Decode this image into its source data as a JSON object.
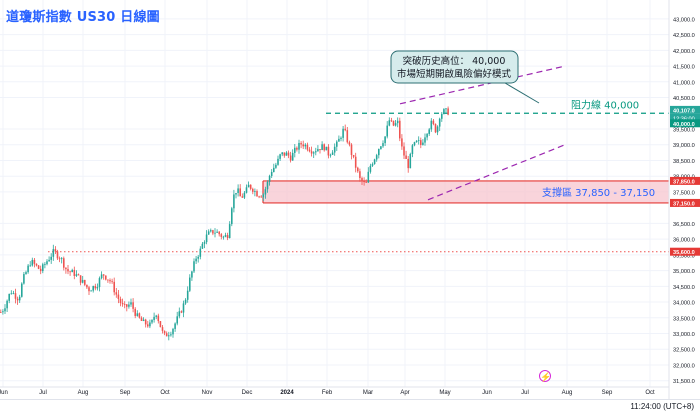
{
  "title": "道瓊斯指數 US30 日線圖",
  "colors": {
    "up": "#26a69a",
    "down": "#ef5350",
    "resistance": "#089981",
    "support_fill": "#f7c6cf",
    "support_line": "#e53935",
    "channel": "#9c27b0",
    "grid": "#f0f3fa",
    "axis_text": "#131722",
    "label_blue": "#2962ff"
  },
  "y_axis_ticks": [
    "43,000.0",
    "42,500.0",
    "42,000.0",
    "41,500.0",
    "41,000.0",
    "40,500.0",
    "39,500.0",
    "39,000.0",
    "38,500.0",
    "38,000.0",
    "37,500.0",
    "36,500.0",
    "36,000.0",
    "35,500.0",
    "35,000.0",
    "34,500.0",
    "34,000.0",
    "33,500.0",
    "33,000.0",
    "32,500.0",
    "32,000.0",
    "31,500.0"
  ],
  "price_tags": {
    "top": "40,107.0",
    "countdown": "12:36:00",
    "resistance": "40,000.0",
    "support_upper": "37,850.0",
    "support_lower": "37,150.0",
    "old_high": "35,600.0"
  },
  "x_axis_labels": [
    "Jun",
    "Jul",
    "Aug",
    "Sep",
    "Oct",
    "Nov",
    "Dec",
    "2024",
    "Feb",
    "Mar",
    "Apr",
    "May",
    "Jun",
    "Jul",
    "Aug",
    "Sep",
    "Oct"
  ],
  "annotations": {
    "callout_line1": "突破历史高位： 40,000",
    "callout_line2": "市場短期開啟風險偏好模式",
    "resistance_label": "阻力線 40,000",
    "support_label": "支撐區 37,850 - 37,150"
  },
  "status_time": "11:24:00 (UTC+8)",
  "chart_data": {
    "type": "candlestick",
    "title": "道瓊斯指數 US30 日線圖",
    "timeframe": "Daily",
    "ylim": [
      31300,
      43600
    ],
    "grid": true,
    "series": [
      {
        "name": "US30",
        "values": [
          [
            -7,
            33400
          ],
          [
            3,
            33800
          ],
          [
            10,
            34350
          ],
          [
            18,
            34100
          ],
          [
            22,
            34700
          ],
          [
            30,
            35300
          ],
          [
            40,
            35000
          ],
          [
            46,
            35300
          ],
          [
            53,
            35600
          ],
          [
            60,
            35400
          ],
          [
            66,
            35000
          ],
          [
            74,
            34900
          ],
          [
            80,
            34700
          ],
          [
            88,
            34400
          ],
          [
            96,
            34550
          ],
          [
            102,
            34900
          ],
          [
            110,
            34650
          ],
          [
            116,
            34200
          ],
          [
            123,
            33800
          ],
          [
            130,
            33950
          ],
          [
            136,
            33550
          ],
          [
            142,
            33350
          ],
          [
            150,
            33250
          ],
          [
            155,
            33700
          ],
          [
            163,
            32900
          ],
          [
            171,
            33100
          ],
          [
            177,
            33500
          ],
          [
            184,
            34000
          ],
          [
            188,
            34600
          ],
          [
            195,
            35400
          ],
          [
            199,
            35600
          ],
          [
            203,
            35950
          ],
          [
            207,
            36150
          ],
          [
            213,
            36250
          ],
          [
            217,
            36200
          ],
          [
            223,
            36050
          ],
          [
            227,
            36150
          ],
          [
            232,
            37300
          ],
          [
            236,
            37600
          ],
          [
            240,
            37300
          ],
          [
            245,
            37500
          ],
          [
            248,
            37700
          ],
          [
            252,
            37600
          ],
          [
            256,
            37450
          ],
          [
            262,
            37400
          ],
          [
            266,
            37700
          ],
          [
            270,
            38150
          ],
          [
            276,
            38400
          ],
          [
            280,
            38700
          ],
          [
            286,
            38700
          ],
          [
            290,
            38600
          ],
          [
            296,
            38900
          ],
          [
            301,
            39050
          ],
          [
            306,
            38950
          ],
          [
            312,
            38800
          ],
          [
            318,
            38900
          ],
          [
            323,
            38950
          ],
          [
            328,
            38700
          ],
          [
            336,
            39000
          ],
          [
            343,
            39500
          ],
          [
            346,
            39200
          ],
          [
            351,
            38700
          ],
          [
            355,
            38300
          ],
          [
            359,
            37900
          ],
          [
            365,
            37700
          ],
          [
            369,
            38300
          ],
          [
            374,
            38600
          ],
          [
            378,
            38900
          ],
          [
            385,
            39300
          ],
          [
            388,
            39800
          ],
          [
            392,
            39600
          ],
          [
            397,
            39700
          ],
          [
            400,
            39000
          ],
          [
            404,
            38600
          ],
          [
            408,
            38300
          ],
          [
            411,
            38900
          ],
          [
            417,
            39100
          ],
          [
            420,
            39000
          ],
          [
            424,
            39300
          ],
          [
            427,
            39500
          ],
          [
            431,
            39700
          ],
          [
            436,
            39400
          ],
          [
            438,
            39900
          ],
          [
            442,
            40050
          ],
          [
            449,
            40050
          ]
        ]
      }
    ],
    "levels": [
      {
        "name": "阻力線 40,000",
        "value": 40000,
        "style": "dashed"
      },
      {
        "name": "支撐區 37,850 - 37,150",
        "from": 37150,
        "to": 37850,
        "style": "band"
      },
      {
        "value": 35600,
        "style": "dotted"
      }
    ],
    "channel": {
      "upper": [
        [
          400,
          40300
        ],
        [
          565,
          41500
        ]
      ],
      "lower": [
        [
          428,
          37250
        ],
        [
          565,
          39000
        ]
      ]
    }
  }
}
